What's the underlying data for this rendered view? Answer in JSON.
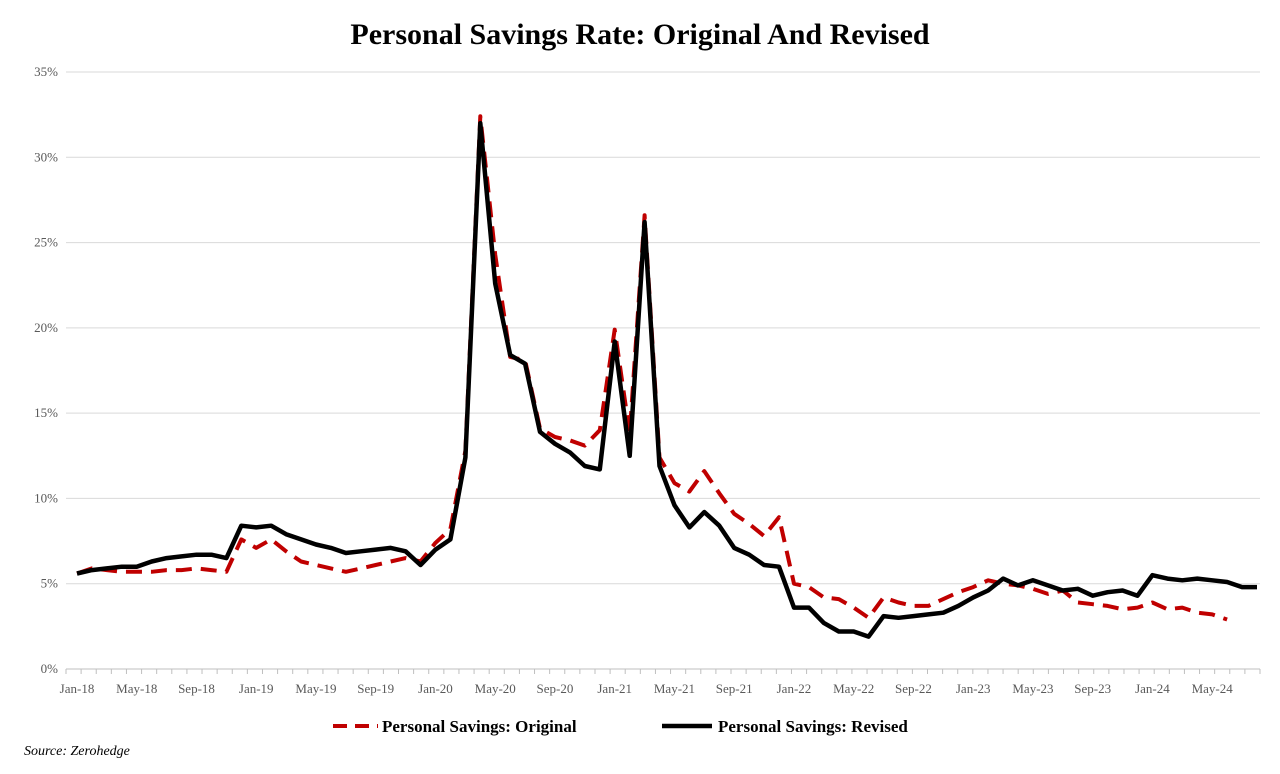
{
  "chart_data": {
    "type": "line",
    "title": "Personal Savings Rate: Original And Revised",
    "y_unit": "%",
    "ylim": [
      0,
      35
    ],
    "y_ticks": [
      0,
      5,
      10,
      15,
      20,
      25,
      30,
      35
    ],
    "y_tick_labels": [
      "0%",
      "5%",
      "10%",
      "15%",
      "20%",
      "25%",
      "30%",
      "35%"
    ],
    "x_tick_labels": [
      "Jan-18",
      "May-18",
      "Sep-18",
      "Jan-19",
      "May-19",
      "Sep-19",
      "Jan-20",
      "May-20",
      "Sep-20",
      "Jan-21",
      "May-21",
      "Sep-21",
      "Jan-22",
      "May-22",
      "Sep-22",
      "Jan-23",
      "May-23",
      "Sep-23",
      "Jan-24",
      "May-24"
    ],
    "x_start": "Jan-18",
    "x_end": "Aug-24",
    "grid": "horizontal",
    "legend_position": "bottom",
    "colors": {
      "original": "#c00000",
      "revised": "#000000",
      "grid": "#d9d9d9"
    },
    "series": [
      {
        "name": "Personal Savings: Original",
        "style": "dashed",
        "start": "Jan-18",
        "values": [
          5.6,
          5.9,
          5.8,
          5.7,
          5.7,
          5.7,
          5.8,
          5.8,
          5.9,
          5.8,
          5.7,
          7.6,
          7.1,
          7.6,
          6.9,
          6.3,
          6.1,
          5.9,
          5.7,
          5.9,
          6.1,
          6.3,
          6.5,
          6.3,
          7.4,
          8.2,
          12.8,
          32.4,
          24.3,
          18.3,
          18.1,
          14.1,
          13.6,
          13.4,
          13.1,
          14.0,
          19.9,
          13.8,
          26.6,
          12.4,
          10.9,
          10.4,
          11.6,
          10.3,
          9.1,
          8.5,
          7.8,
          8.9,
          5.0,
          4.8,
          4.2,
          4.1,
          3.6,
          3.0,
          4.2,
          3.9,
          3.7,
          3.7,
          4.1,
          4.5,
          4.8,
          5.2,
          5.0,
          4.9,
          4.7,
          4.4,
          4.6,
          3.9,
          3.8,
          3.7,
          3.5,
          3.6,
          3.9,
          3.5,
          3.6,
          3.3,
          3.2,
          2.9
        ],
        "_note_unused": ""
      },
      {
        "name": "Personal Savings: Revised",
        "style": "solid",
        "start": "Jan-18",
        "values": [
          5.6,
          5.8,
          5.9,
          6.0,
          6.0,
          6.3,
          6.5,
          6.6,
          6.7,
          6.7,
          6.5,
          8.4,
          8.3,
          8.4,
          7.9,
          7.6,
          7.3,
          7.1,
          6.8,
          6.9,
          7.0,
          7.1,
          6.9,
          6.1,
          7.0,
          7.6,
          12.4,
          32.0,
          22.6,
          18.4,
          17.9,
          13.9,
          13.2,
          12.7,
          11.9,
          11.7,
          19.2,
          12.5,
          26.2,
          11.9,
          9.6,
          8.3,
          9.2,
          8.4,
          7.1,
          6.7,
          6.1,
          6.0,
          3.6,
          3.6,
          2.7,
          2.2,
          2.2,
          1.9,
          3.1,
          3.0,
          3.1,
          3.2,
          3.3,
          3.7,
          4.2,
          4.6,
          5.3,
          4.9,
          5.2,
          4.9,
          4.6,
          4.7,
          4.3,
          4.5,
          4.6,
          4.3,
          5.5,
          5.3,
          5.2,
          5.3,
          5.2,
          5.1,
          4.8,
          4.8
        ]
      }
    ],
    "source": "Source: Zerohedge"
  }
}
